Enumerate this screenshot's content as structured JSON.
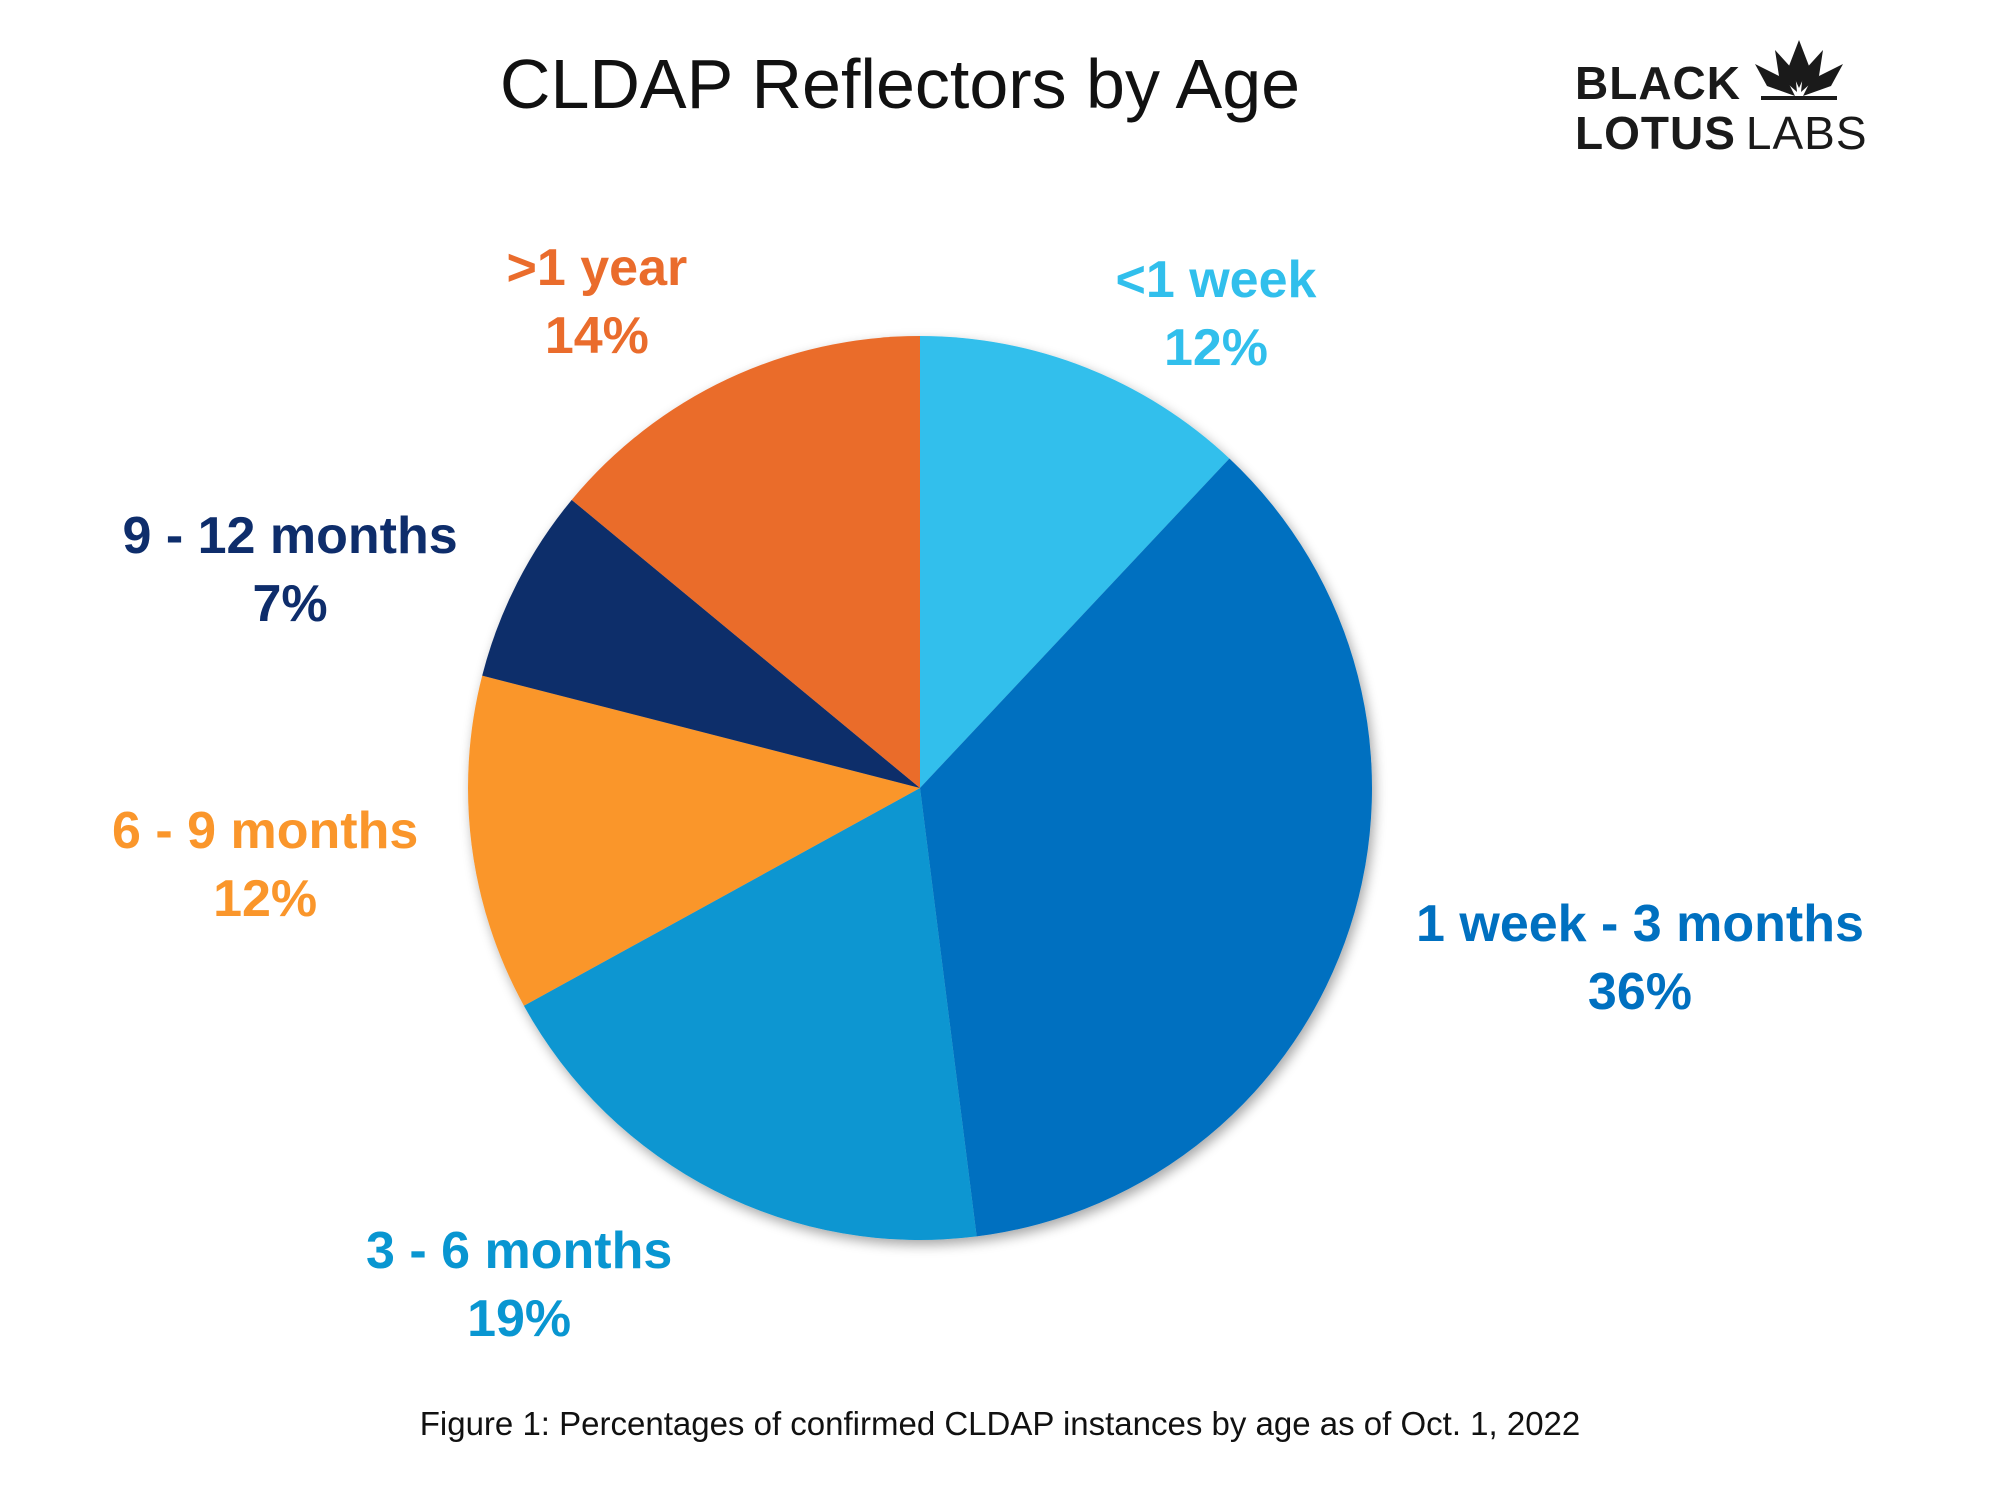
{
  "logo": {
    "line1": "BLACK",
    "line2_bold": "LOTUS",
    "line2_light": "LABS",
    "mark_icon": "lotus-flower-icon"
  },
  "caption": "Figure 1: Percentages of confirmed CLDAP instances by age as of Oct. 1, 2022",
  "chart_data": {
    "type": "pie",
    "title": "CLDAP Reflectors by Age",
    "start_angle_deg": 0,
    "direction": "clockwise",
    "slices": [
      {
        "label": "<1 week",
        "value": 12,
        "value_label": "12%",
        "color": "#31BFEC"
      },
      {
        "label": "1 week - 3 months",
        "value": 36,
        "value_label": "36%",
        "color": "#0070C0"
      },
      {
        "label": "3 - 6 months",
        "value": 19,
        "value_label": "19%",
        "color": "#0996D1"
      },
      {
        "label": "6 - 9 months",
        "value": 12,
        "value_label": "12%",
        "color": "#FA962B"
      },
      {
        "label": "9 - 12 months",
        "value": 7,
        "value_label": "7%",
        "color": "#0E2D6B"
      },
      {
        "label": ">1 year",
        "value": 14,
        "value_label": "14%",
        "color": "#EA6C2C"
      }
    ]
  }
}
